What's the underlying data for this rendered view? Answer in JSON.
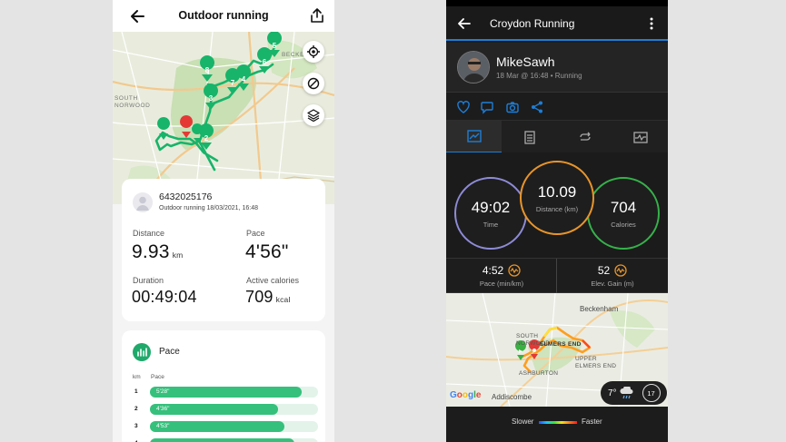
{
  "left_app": {
    "header": {
      "title": "Outdoor running"
    },
    "map": {
      "labels": {
        "south_norwood": "SOUTH\nNORWOOD",
        "beckenham_partial": "BECKENHAM"
      }
    },
    "summary": {
      "user_id": "6432025176",
      "activity_line": "Outdoor running 18/03/2021, 16:48",
      "distance": {
        "label": "Distance",
        "value": "9.93",
        "unit": "km"
      },
      "pace": {
        "label": "Pace",
        "value": "4'56\""
      },
      "duration": {
        "label": "Duration",
        "value": "00:49:04"
      },
      "calories": {
        "label": "Active calories",
        "value": "709",
        "unit": "kcal"
      }
    },
    "pace_section": {
      "title": "Pace",
      "col_km": "km",
      "col_pace": "Pace",
      "rows": [
        {
          "km": "1",
          "pace": "5'28\"",
          "fraction": 0.9
        },
        {
          "km": "2",
          "pace": "4'36\"",
          "fraction": 0.76
        },
        {
          "km": "3",
          "pace": "4'53\"",
          "fraction": 0.8
        },
        {
          "km": "4",
          "pace": "",
          "fraction": 0.86
        }
      ]
    },
    "route_markers": [
      "2",
      "3",
      "4",
      "5",
      "6",
      "7",
      "8"
    ],
    "colors": {
      "accent": "#1fa96b",
      "route": "#17b46a",
      "bar": "#35c07c"
    }
  },
  "right_app": {
    "header": {
      "title": "Croydon Running"
    },
    "profile": {
      "name": "MikeSawh",
      "meta": "18 Mar @ 16:48 • Running"
    },
    "rings": {
      "time": {
        "value": "49:02",
        "label": "Time"
      },
      "distance": {
        "value": "10.09",
        "label": "Distance (km)"
      },
      "calories": {
        "value": "704",
        "label": "Calories"
      }
    },
    "metrics": {
      "pace": {
        "value": "4:52",
        "label": "Pace (min/km)"
      },
      "elevation": {
        "value": "52",
        "label": "Elev. Gain (m)"
      }
    },
    "map": {
      "labels": {
        "beckenham": "Beckenham",
        "south_norwood": "SOUTH\nNORWOOD",
        "elmers_end": "ELMERS END",
        "ashburton": "ASHBURTON",
        "upper_elmers_end": "UPPER\nELMERS END",
        "addiscombe": "Addiscombe"
      },
      "weather": {
        "temp": "7°",
        "wind": "17"
      },
      "provider": "Google"
    },
    "legend": {
      "slower": "Slower",
      "faster": "Faster"
    },
    "colors": {
      "accent": "#1e7ed6",
      "time": "#8e8bd6",
      "distance": "#e8952a",
      "calories": "#35b24a"
    }
  }
}
